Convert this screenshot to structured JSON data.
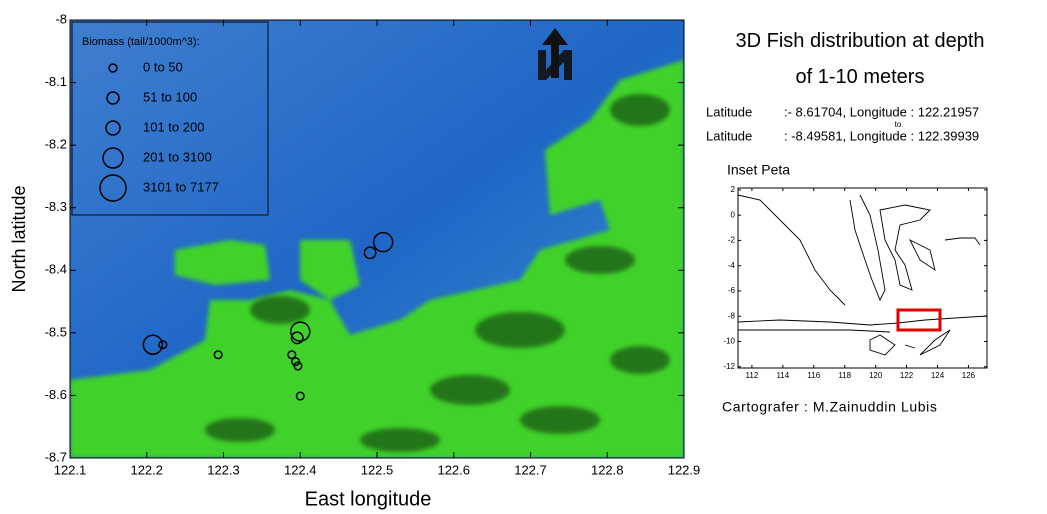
{
  "chart_data": [
    {
      "type": "bubble-map",
      "x_label": "East longitude",
      "y_label": "North latitude",
      "xlim": [
        122.1,
        122.9
      ],
      "ylim": [
        -8.7,
        -8
      ],
      "xticks": [
        122.1,
        122.2,
        122.3,
        122.4,
        122.5,
        122.6,
        122.7,
        122.8,
        122.9
      ],
      "yticks": [
        -8.7,
        -8.6,
        -8.5,
        -8.4,
        -8.3,
        -8.2,
        -8.1,
        -8
      ],
      "legend_title": "Biomass (tail/1000m^3):",
      "legend": [
        "0  to  50",
        "51  to  100",
        "101  to  200",
        "201  to  3100",
        "3101  to  7177"
      ],
      "x": [
        122.208,
        122.221,
        122.293,
        122.4,
        122.396,
        122.389,
        122.394,
        122.397,
        122.4,
        122.508,
        122.491
      ],
      "y": [
        -8.519,
        -8.519,
        -8.535,
        -8.498,
        -8.508,
        -8.535,
        -8.546,
        -8.553,
        -8.601,
        -8.355,
        -8.372
      ],
      "values": [
        2000,
        30,
        30,
        2000,
        80,
        30,
        30,
        30,
        30,
        2000,
        80
      ],
      "color": "#000000"
    },
    {
      "type": "inset",
      "title": "Inset Peta",
      "xlim": [
        111.1,
        127.2
      ],
      "ylim": [
        -12.1,
        2.15
      ],
      "xticks": [
        112,
        114,
        116,
        118,
        120,
        122,
        124,
        126
      ],
      "yticks": [
        -12,
        -10,
        -8,
        -6,
        -4,
        -2,
        0,
        2
      ],
      "color": "#e00000"
    }
  ],
  "panel": {
    "title": "3D Fish distribution at depth of 1-10 meters",
    "from_label": "Latitude",
    "from_value": ":- 8.61704, Longitude : 122.21957",
    "to": "to",
    "to_label": "Latitude",
    "to_value": ": -8.49581, Longitude : 122.39939",
    "credit": "Cartografer : M.Zainuddin Lubis"
  }
}
